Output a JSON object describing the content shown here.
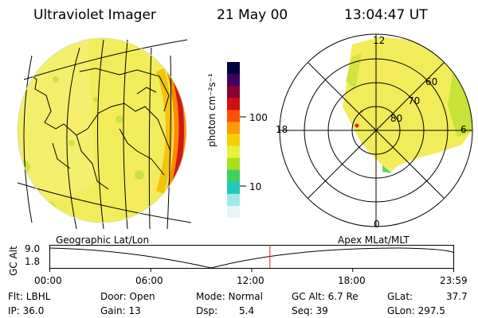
{
  "header": {
    "instrument": "Ultraviolet Imager",
    "date": "21 May 00",
    "time": "13:04:47 UT"
  },
  "colorbar": {
    "label": "photon cm⁻²s⁻¹",
    "ticks": [
      "100",
      "10"
    ],
    "colors": [
      "#000040",
      "#400060",
      "#8a0030",
      "#d01010",
      "#ff5000",
      "#ff9a00",
      "#f4d000",
      "#e8f040",
      "#a8e020",
      "#40d060",
      "#20c8c0",
      "#a0e8e8",
      "#e8f4f4"
    ]
  },
  "polar": {
    "hour_labels": {
      "top": "12",
      "left": "18",
      "right": "6",
      "bottom": "0"
    },
    "lat_labels": [
      "60",
      "70",
      "80"
    ]
  },
  "timeline": {
    "left_label": "Geographic Lat/Lon",
    "right_label": "Apex MLat/MLT",
    "axis_label": "GC Alt",
    "y_ticks": [
      "9.0",
      "1.8"
    ],
    "x_ticks": [
      "00:00",
      "06:00",
      "12:00",
      "18:00",
      "23:59"
    ],
    "current_time_hours": 13.08
  },
  "footer": {
    "flt": "Flt: LBHL",
    "ip": "IP: 36.0",
    "door": "Door: Open",
    "gain": "Gain: 13",
    "mode": "Mode: Normal",
    "dsp_label": "Dsp:",
    "dsp_value": "5.4",
    "gcalt": "GC Alt: 6.7 Re",
    "seq": "Seq: 39",
    "glat": "GLat:",
    "glat_value": "37.7",
    "glon": "GLon: 297.5"
  },
  "colors": {
    "image_base": "#f2ec5a",
    "edge_green": "#c8e23a",
    "limb_orange": "#ff8a00",
    "limb_red": "#d01818",
    "marker_red": "#e02020"
  }
}
